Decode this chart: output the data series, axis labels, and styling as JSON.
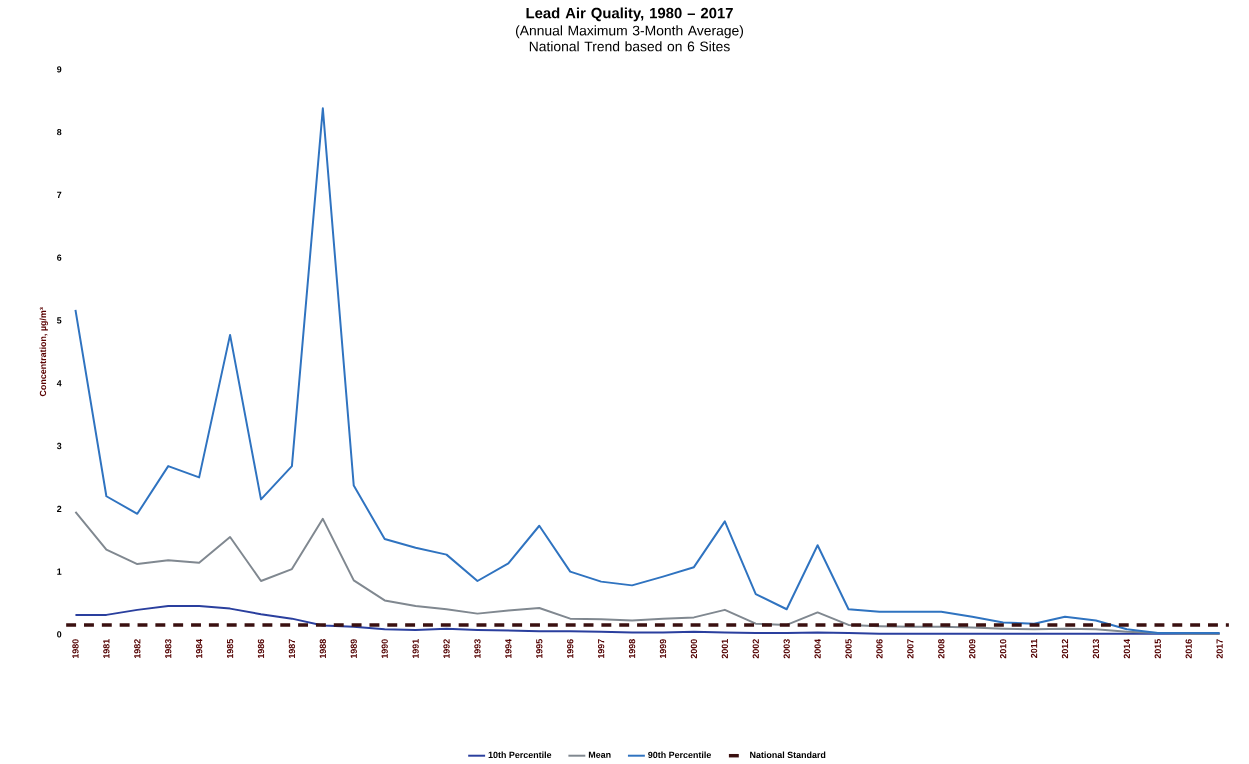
{
  "chart_data": {
    "type": "line",
    "title": "Lead Air Quality, 1980 – 2017",
    "subtitle": "(Annual Maximum 3-Month Average)\nNational Trend based on 6 Sites",
    "ylabel": "Concentration, µg/m³",
    "categories": [
      "1980",
      "1981",
      "1982",
      "1983",
      "1984",
      "1985",
      "1986",
      "1987",
      "1988",
      "1989",
      "1990",
      "1991",
      "1992",
      "1993",
      "1994",
      "1995",
      "1996",
      "1997",
      "1998",
      "1999",
      "2000",
      "2001",
      "2002",
      "2003",
      "2004",
      "2005",
      "2006",
      "2007",
      "2008",
      "2009",
      "2010",
      "2011",
      "2012",
      "2013",
      "2014",
      "2015",
      "2016",
      "2017"
    ],
    "series": [
      {
        "name": "10th Percentile",
        "color": "#2a3f9e",
        "values": [
          0.31,
          0.31,
          0.39,
          0.45,
          0.45,
          0.41,
          0.32,
          0.25,
          0.14,
          0.12,
          0.08,
          0.07,
          0.09,
          0.07,
          0.06,
          0.05,
          0.05,
          0.04,
          0.03,
          0.03,
          0.04,
          0.03,
          0.02,
          0.02,
          0.03,
          0.02,
          0.01,
          0.01,
          0.01,
          0.01,
          0.01,
          0.01,
          0.01,
          0.01,
          0.01,
          0.01,
          0.01,
          0.01
        ]
      },
      {
        "name": "Mean",
        "color": "#808890",
        "values": [
          1.95,
          1.35,
          1.12,
          1.18,
          1.14,
          1.55,
          0.85,
          1.04,
          1.84,
          0.86,
          0.54,
          0.45,
          0.4,
          0.33,
          0.38,
          0.42,
          0.25,
          0.24,
          0.22,
          0.25,
          0.27,
          0.39,
          0.17,
          0.15,
          0.35,
          0.15,
          0.13,
          0.12,
          0.12,
          0.11,
          0.09,
          0.08,
          0.09,
          0.08,
          0.04,
          0.02,
          0.01,
          0.01
        ]
      },
      {
        "name": "90th Percentile",
        "color": "#2f73c0",
        "values": [
          5.17,
          2.2,
          1.92,
          2.68,
          2.5,
          4.77,
          2.15,
          2.68,
          8.38,
          2.37,
          1.52,
          1.38,
          1.27,
          0.85,
          1.13,
          1.73,
          1.0,
          0.84,
          0.78,
          0.92,
          1.07,
          1.8,
          0.64,
          0.4,
          1.42,
          0.4,
          0.36,
          0.36,
          0.36,
          0.28,
          0.19,
          0.17,
          0.28,
          0.22,
          0.08,
          0.02,
          0.02,
          0.02
        ]
      }
    ],
    "ref_lines": [
      {
        "axis": "y",
        "value": 0.15,
        "label": "National Standard",
        "color": "#3a1010",
        "line_style": "dashed"
      }
    ],
    "ylim": [
      0,
      9
    ],
    "yticks": [
      0,
      1,
      2,
      3,
      4,
      5,
      6,
      7,
      8,
      9
    ],
    "legend": "bottom",
    "marker": "none",
    "line_style": "solid"
  }
}
